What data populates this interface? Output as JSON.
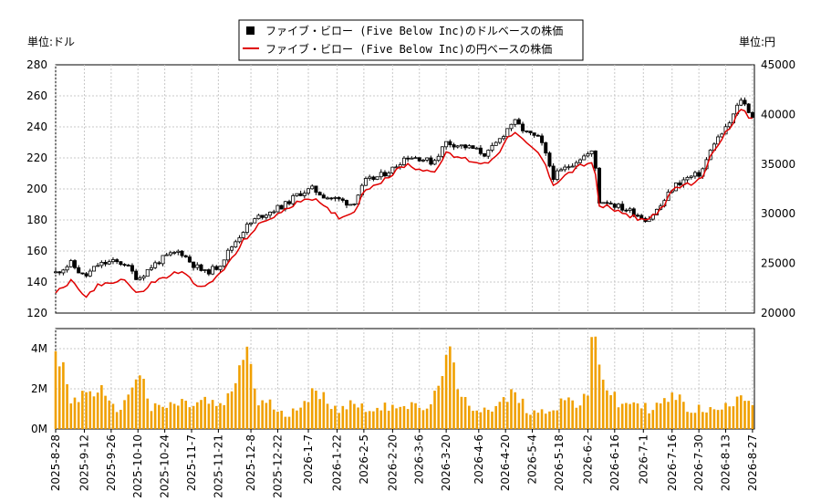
{
  "left_unit": "単位:ドル",
  "right_unit": "単位:円",
  "legend": [
    {
      "label": "ファイブ・ビロー (Five Below Inc)のドルベースの株価",
      "color": "#000000"
    },
    {
      "label": "ファイブ・ビロー (Five Below Inc)の円ベースの株価",
      "color": "#e00000"
    }
  ],
  "colors": {
    "usd": "#000000",
    "jpy": "#e00000",
    "volume": "#f0a000",
    "grid": "#c8c8c8"
  },
  "chart_data": [
    {
      "type": "line",
      "y_left_ticks": [
        "280",
        "260",
        "240",
        "220",
        "200",
        "180",
        "160",
        "140",
        "120"
      ],
      "y_right_ticks": [
        "45000",
        "40000",
        "35000",
        "30000",
        "25000",
        "20000"
      ],
      "ylim_left": [
        120,
        280
      ],
      "ylim_right": [
        20000,
        45000
      ],
      "x_range": [
        "2025-08-28",
        "2026-08-28"
      ],
      "series": [
        {
          "name": "ファイブ・ビロー (Five Below Inc)のドルベースの株価",
          "points": [
            [
              "2025-08-28",
              146
            ],
            [
              "2025-09-05",
              152
            ],
            [
              "2025-09-12",
              143
            ],
            [
              "2025-09-19",
              151
            ],
            [
              "2025-09-26",
              153
            ],
            [
              "2025-10-03",
              152
            ],
            [
              "2025-10-10",
              142
            ],
            [
              "2025-10-17",
              150
            ],
            [
              "2025-10-24",
              156
            ],
            [
              "2025-11-01",
              160
            ],
            [
              "2025-11-07",
              152
            ],
            [
              "2025-11-14",
              146
            ],
            [
              "2025-11-21",
              150
            ],
            [
              "2025-11-28",
              163
            ],
            [
              "2025-12-05",
              175
            ],
            [
              "2025-12-12",
              182
            ],
            [
              "2025-12-19",
              186
            ],
            [
              "2025-12-26",
              190
            ],
            [
              "2026-01-02",
              197
            ],
            [
              "2026-01-09",
              200
            ],
            [
              "2026-01-16",
              195
            ],
            [
              "2026-01-23",
              193
            ],
            [
              "2026-01-30",
              190
            ],
            [
              "2026-02-06",
              205
            ],
            [
              "2026-02-13",
              208
            ],
            [
              "2026-02-20",
              213
            ],
            [
              "2026-02-27",
              221
            ],
            [
              "2026-03-06",
              220
            ],
            [
              "2026-03-13",
              217
            ],
            [
              "2026-03-20",
              230
            ],
            [
              "2026-04-03",
              226
            ],
            [
              "2026-04-10",
              222
            ],
            [
              "2026-04-17",
              232
            ],
            [
              "2026-04-24",
              244
            ],
            [
              "2026-05-01",
              236
            ],
            [
              "2026-05-08",
              232
            ],
            [
              "2026-05-15",
              208
            ],
            [
              "2026-05-22",
              214
            ],
            [
              "2026-05-29",
              220
            ],
            [
              "2026-06-05",
              224
            ],
            [
              "2026-06-08",
              192
            ],
            [
              "2026-06-12",
              192
            ],
            [
              "2026-06-19",
              188
            ],
            [
              "2026-06-26",
              185
            ],
            [
              "2026-07-03",
              180
            ],
            [
              "2026-07-10",
              189
            ],
            [
              "2026-07-17",
              202
            ],
            [
              "2026-07-24",
              207
            ],
            [
              "2026-07-31",
              210
            ],
            [
              "2026-08-07",
              230
            ],
            [
              "2026-08-14",
              240
            ],
            [
              "2026-08-21",
              258
            ],
            [
              "2026-08-28",
              245
            ]
          ]
        },
        {
          "name": "ファイブ・ビロー (Five Below Inc)の円ベースの株価",
          "points": [
            [
              "2025-08-28",
              22000
            ],
            [
              "2025-09-05",
              23200
            ],
            [
              "2025-09-12",
              21500
            ],
            [
              "2025-09-19",
              22700
            ],
            [
              "2025-09-26",
              23200
            ],
            [
              "2025-10-03",
              23400
            ],
            [
              "2025-10-10",
              21800
            ],
            [
              "2025-10-17",
              23000
            ],
            [
              "2025-10-24",
              23600
            ],
            [
              "2025-11-01",
              24200
            ],
            [
              "2025-11-07",
              23300
            ],
            [
              "2025-11-14",
              22500
            ],
            [
              "2025-11-21",
              23800
            ],
            [
              "2025-11-28",
              25400
            ],
            [
              "2025-12-05",
              27500
            ],
            [
              "2025-12-12",
              28800
            ],
            [
              "2025-12-19",
              29700
            ],
            [
              "2025-12-26",
              30300
            ],
            [
              "2026-01-02",
              31400
            ],
            [
              "2026-01-09",
              31600
            ],
            [
              "2026-01-16",
              30500
            ],
            [
              "2026-01-23",
              29700
            ],
            [
              "2026-01-30",
              30000
            ],
            [
              "2026-02-06",
              32500
            ],
            [
              "2026-02-13",
              33200
            ],
            [
              "2026-02-20",
              34000
            ],
            [
              "2026-02-27",
              35000
            ],
            [
              "2026-03-06",
              34500
            ],
            [
              "2026-03-13",
              34200
            ],
            [
              "2026-03-20",
              36000
            ],
            [
              "2026-04-03",
              35300
            ],
            [
              "2026-04-10",
              35000
            ],
            [
              "2026-04-17",
              36400
            ],
            [
              "2026-04-24",
              38300
            ],
            [
              "2026-05-01",
              37000
            ],
            [
              "2026-05-08",
              36000
            ],
            [
              "2026-05-15",
              33000
            ],
            [
              "2026-05-22",
              34000
            ],
            [
              "2026-05-29",
              34800
            ],
            [
              "2026-06-05",
              35300
            ],
            [
              "2026-06-08",
              30600
            ],
            [
              "2026-06-12",
              30800
            ],
            [
              "2026-06-19",
              30000
            ],
            [
              "2026-06-26",
              29700
            ],
            [
              "2026-07-03",
              29300
            ],
            [
              "2026-07-10",
              30500
            ],
            [
              "2026-07-17",
              32400
            ],
            [
              "2026-07-24",
              33000
            ],
            [
              "2026-07-31",
              33400
            ],
            [
              "2026-08-07",
              36500
            ],
            [
              "2026-08-14",
              38500
            ],
            [
              "2026-08-21",
              40500
            ],
            [
              "2026-08-28",
              39200
            ]
          ]
        }
      ]
    },
    {
      "type": "bar",
      "y_ticks": [
        "4M",
        "2M",
        "0M"
      ],
      "ylim": [
        0,
        5000000
      ],
      "x_ticks": [
        "2025-8-28",
        "2025-9-12",
        "2025-9-26",
        "2025-10-10",
        "2025-10-24",
        "2025-11-7",
        "2025-11-21",
        "2025-12-8",
        "2025-12-22",
        "2026-1-7",
        "2026-1-22",
        "2026-2-5",
        "2026-2-20",
        "2026-3-6",
        "2026-3-20",
        "2026-4-6",
        "2026-4-20",
        "2026-5-4",
        "2026-5-18",
        "2026-6-2",
        "2026-6-16",
        "2026-7-1",
        "2026-7-16",
        "2026-7-30",
        "2026-8-13",
        "2026-8-27"
      ],
      "series": [
        {
          "name": "",
          "points": [
            [
              "2025-08-28",
              4200000
            ],
            [
              "2025-09-05",
              1400000
            ],
            [
              "2025-09-12",
              1700000
            ],
            [
              "2025-09-19",
              2100000
            ],
            [
              "2025-09-26",
              1000000
            ],
            [
              "2025-10-03",
              1200000
            ],
            [
              "2025-10-10",
              3100000
            ],
            [
              "2025-10-17",
              1000000
            ],
            [
              "2025-10-24",
              1100000
            ],
            [
              "2025-11-01",
              1300000
            ],
            [
              "2025-11-07",
              1200000
            ],
            [
              "2025-11-14",
              1400000
            ],
            [
              "2025-11-21",
              1100000
            ],
            [
              "2025-11-28",
              1600000
            ],
            [
              "2025-12-05",
              4300000
            ],
            [
              "2025-12-12",
              1300000
            ],
            [
              "2025-12-19",
              1200000
            ],
            [
              "2025-12-26",
              600000
            ],
            [
              "2026-01-02",
              1300000
            ],
            [
              "2026-01-09",
              1700000
            ],
            [
              "2026-01-16",
              1500000
            ],
            [
              "2026-01-23",
              1000000
            ],
            [
              "2026-01-30",
              1300000
            ],
            [
              "2026-02-06",
              1100000
            ],
            [
              "2026-02-13",
              900000
            ],
            [
              "2026-02-20",
              1300000
            ],
            [
              "2026-02-27",
              1200000
            ],
            [
              "2026-03-06",
              1000000
            ],
            [
              "2026-03-13",
              1100000
            ],
            [
              "2026-03-20",
              4200000
            ],
            [
              "2026-03-27",
              1500000
            ],
            [
              "2026-04-03",
              1100000
            ],
            [
              "2026-04-10",
              1000000
            ],
            [
              "2026-04-17",
              1200000
            ],
            [
              "2026-04-24",
              1800000
            ],
            [
              "2026-05-01",
              1000000
            ],
            [
              "2026-05-08",
              800000
            ],
            [
              "2026-05-15",
              1100000
            ],
            [
              "2026-05-22",
              1500000
            ],
            [
              "2026-05-29",
              1200000
            ],
            [
              "2026-06-02",
              1600000
            ],
            [
              "2026-06-05",
              5100000
            ],
            [
              "2026-06-12",
              2000000
            ],
            [
              "2026-06-19",
              1100000
            ],
            [
              "2026-06-26",
              1400000
            ],
            [
              "2026-07-03",
              1000000
            ],
            [
              "2026-07-10",
              1200000
            ],
            [
              "2026-07-17",
              1700000
            ],
            [
              "2026-07-24",
              1000000
            ],
            [
              "2026-07-31",
              1000000
            ],
            [
              "2026-08-07",
              900000
            ],
            [
              "2026-08-14",
              1100000
            ],
            [
              "2026-08-21",
              2000000
            ],
            [
              "2026-08-28",
              1100000
            ]
          ]
        }
      ]
    }
  ]
}
